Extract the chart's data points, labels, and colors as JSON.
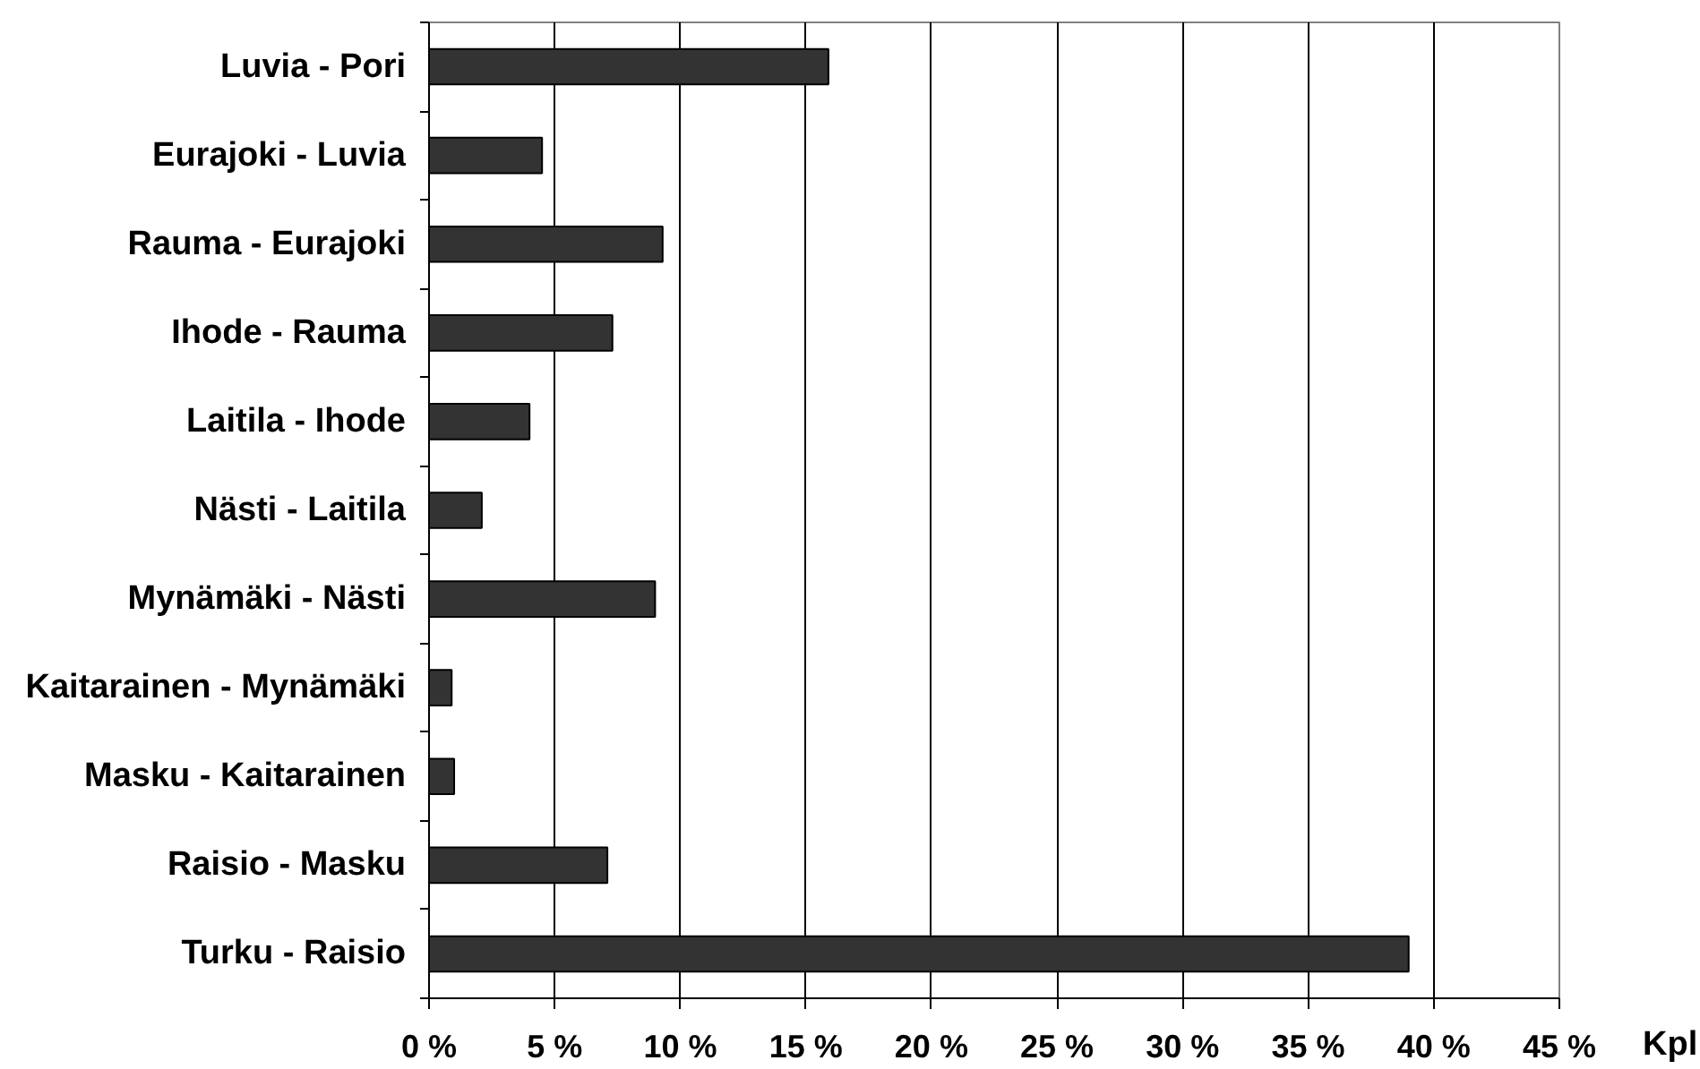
{
  "chart_data": {
    "type": "bar",
    "orientation": "horizontal",
    "xlabel": "Kpl",
    "categories": [
      "Luvia - Pori",
      "Eurajoki - Luvia",
      "Rauma - Eurajoki",
      "Ihode - Rauma",
      "Laitila - Ihode",
      "Nästi - Laitila",
      "Mynämäki - Nästi",
      "Kaitarainen - Mynämäki",
      "Masku - Kaitarainen",
      "Raisio - Masku",
      "Turku - Raisio"
    ],
    "values": [
      15.9,
      4.5,
      9.3,
      7.3,
      4.0,
      2.1,
      9.0,
      0.9,
      1.0,
      7.1,
      39.0
    ],
    "color": "#333333",
    "xlim": [
      0,
      45
    ],
    "xticks": [
      {
        "value": 0,
        "label": "0 %"
      },
      {
        "value": 5,
        "label": "5 %"
      },
      {
        "value": 10,
        "label": "10 %"
      },
      {
        "value": 15,
        "label": "15 %"
      },
      {
        "value": 20,
        "label": "20 %"
      },
      {
        "value": 25,
        "label": "25 %"
      },
      {
        "value": 30,
        "label": "30 %"
      },
      {
        "value": 35,
        "label": "35 %"
      },
      {
        "value": 40,
        "label": "40 %"
      },
      {
        "value": 45,
        "label": "45 %"
      }
    ],
    "grid": "x"
  }
}
